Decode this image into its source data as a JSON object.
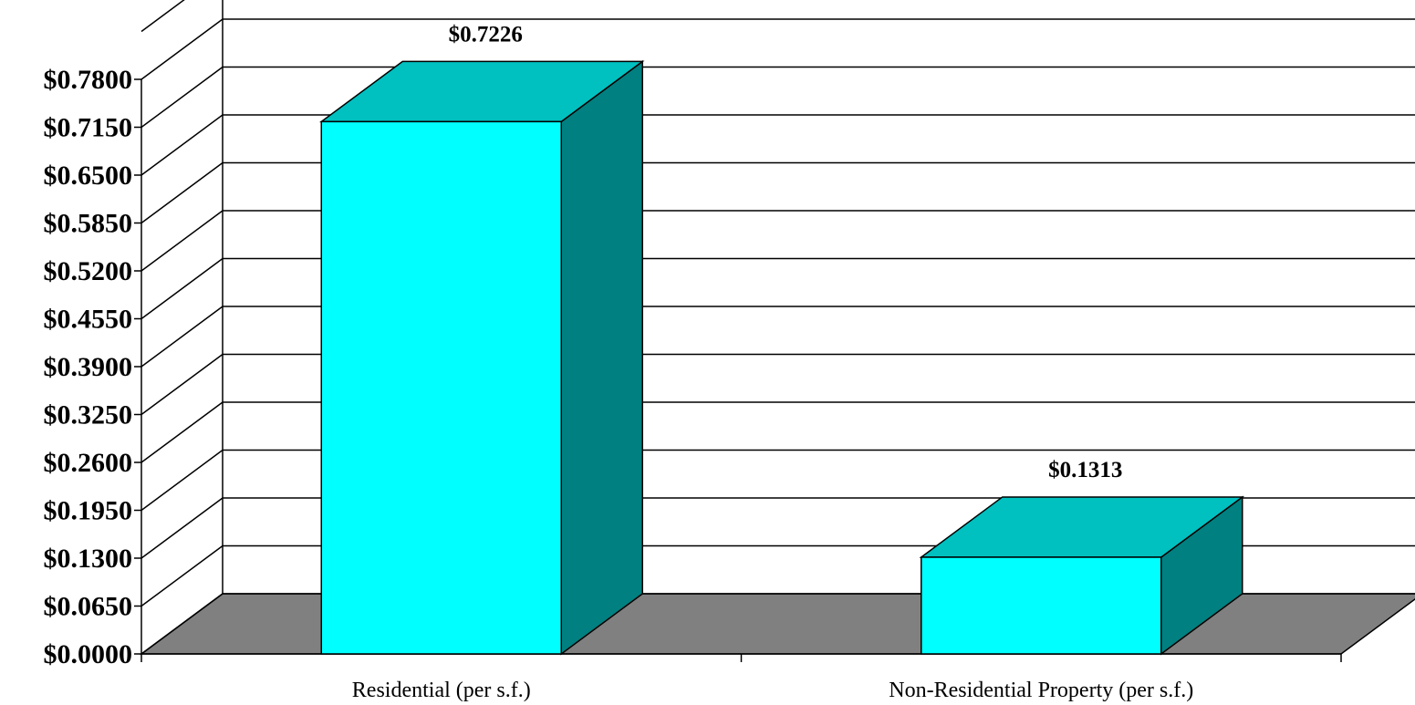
{
  "chart_data": {
    "type": "bar",
    "style": "3d-column",
    "categories": [
      "Residential (per s.f.)",
      "Non-Residential Property (per s.f.)"
    ],
    "values": [
      0.7226,
      0.1313
    ],
    "data_labels": [
      "$0.7226",
      "$0.1313"
    ],
    "y_ticks": [
      "$0.0000",
      "$0.0650",
      "$0.1300",
      "$0.1950",
      "$0.2600",
      "$0.3250",
      "$0.3900",
      "$0.4550",
      "$0.5200",
      "$0.5850",
      "$0.6500",
      "$0.7150",
      "$0.7800"
    ],
    "ylim": [
      0,
      0.845
    ],
    "y_step": 0.065,
    "grid": true,
    "legend": "none",
    "title": "",
    "xlabel": "",
    "ylabel": "",
    "colors": {
      "bar_front": "#00FFFF",
      "bar_top": "#00C0C0",
      "bar_side": "#008080",
      "floor": "#808080",
      "gridline": "#000000"
    }
  }
}
